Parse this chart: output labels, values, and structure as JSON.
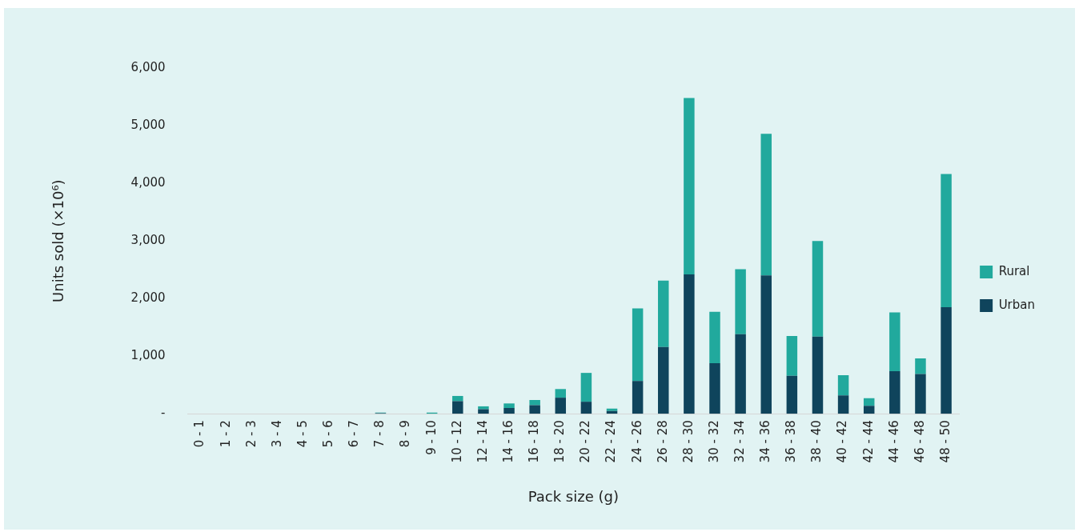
{
  "chart_data": {
    "type": "bar",
    "xlabel": "Pack size (g)",
    "ylabel": "Units sold (×10⁶)",
    "categories": [
      "0 - 1",
      "1 - 2",
      "2 - 3",
      "3 - 4",
      "4 - 5",
      "5 - 6",
      "6 - 7",
      "7 - 8",
      "8 - 9",
      "9 - 10",
      "10 - 12",
      "12 - 14",
      "14 - 16",
      "16 - 18",
      "18 - 20",
      "20 - 22",
      "22 - 24",
      "24 - 26",
      "26 - 28",
      "28 - 30",
      "30 - 32",
      "32 - 34",
      "34 - 36",
      "36 - 38",
      "38 - 40",
      "40 - 42",
      "42 - 44",
      "44 - 46",
      "46 - 48",
      "48 - 50"
    ],
    "series": [
      {
        "name": "Urban",
        "color": "#0f445c",
        "values": [
          0,
          0,
          0,
          0,
          0,
          0,
          0,
          10,
          0,
          0,
          220,
          80,
          100,
          150,
          280,
          210,
          50,
          570,
          1160,
          2420,
          880,
          1380,
          2400,
          660,
          1340,
          320,
          140,
          740,
          690,
          1850
        ]
      },
      {
        "name": "Rural",
        "color": "#21a99d",
        "values": [
          0,
          0,
          0,
          0,
          0,
          0,
          0,
          10,
          0,
          20,
          90,
          50,
          80,
          90,
          150,
          500,
          40,
          1260,
          1150,
          3060,
          890,
          1130,
          2460,
          690,
          1660,
          350,
          130,
          1020,
          270,
          2310
        ]
      }
    ],
    "stacked": true,
    "ylim": [
      0,
      6000
    ],
    "yticks": [
      {
        "value": 0,
        "label": "-"
      },
      {
        "value": 1000,
        "label": "1,000"
      },
      {
        "value": 2000,
        "label": "2,000"
      },
      {
        "value": 3000,
        "label": "3,000"
      },
      {
        "value": 4000,
        "label": "4,000"
      },
      {
        "value": 5000,
        "label": "5,000"
      },
      {
        "value": 6000,
        "label": "6,000"
      }
    ],
    "grid": false,
    "legend": "right"
  }
}
